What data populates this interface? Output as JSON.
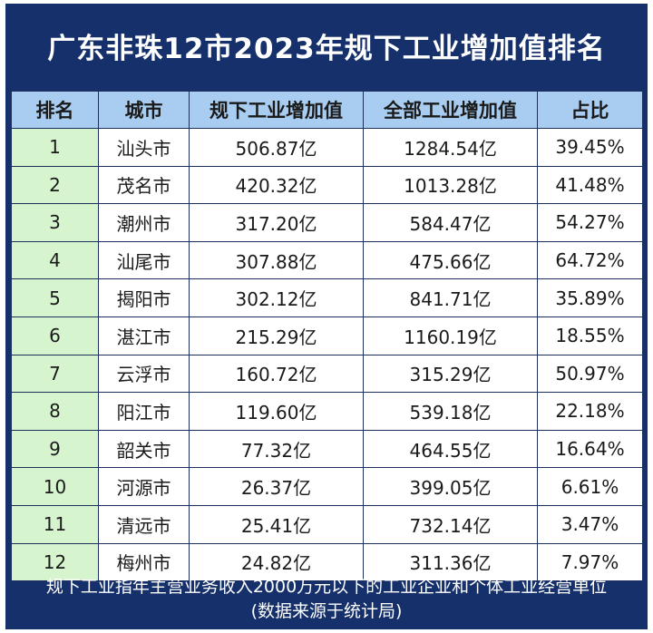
{
  "title": "广东非珠12市2023年规下工业增加值排名",
  "headers": [
    "排名",
    "城市",
    "规下工业增加值",
    "全部工业增加值",
    "占比"
  ],
  "rows": [
    {
      "rank": "1",
      "city": "汕头市",
      "small": "506.87亿",
      "total": "1284.54亿",
      "ratio": "39.45%"
    },
    {
      "rank": "2",
      "city": "茂名市",
      "small": "420.32亿",
      "total": "1013.28亿",
      "ratio": "41.48%"
    },
    {
      "rank": "3",
      "city": "潮州市",
      "small": "317.20亿",
      "total": "584.47亿",
      "ratio": "54.27%"
    },
    {
      "rank": "4",
      "city": "汕尾市",
      "small": "307.88亿",
      "total": "475.66亿",
      "ratio": "64.72%"
    },
    {
      "rank": "5",
      "city": "揭阳市",
      "small": "302.12亿",
      "total": "841.71亿",
      "ratio": "35.89%"
    },
    {
      "rank": "6",
      "city": "湛江市",
      "small": "215.29亿",
      "total": "1160.19亿",
      "ratio": "18.55%"
    },
    {
      "rank": "7",
      "city": "云浮市",
      "small": "160.72亿",
      "total": "315.29亿",
      "ratio": "50.97%"
    },
    {
      "rank": "8",
      "city": "阳江市",
      "small": "119.60亿",
      "total": "539.18亿",
      "ratio": "22.18%"
    },
    {
      "rank": "9",
      "city": "韶关市",
      "small": "77.32亿",
      "total": "464.55亿",
      "ratio": "16.64%"
    },
    {
      "rank": "10",
      "city": "河源市",
      "small": "26.37亿",
      "total": "399.05亿",
      "ratio": "6.61%"
    },
    {
      "rank": "11",
      "city": "清远市",
      "small": "25.41亿",
      "total": "732.14亿",
      "ratio": "3.47%"
    },
    {
      "rank": "12",
      "city": "梅州市",
      "small": "24.82亿",
      "total": "311.36亿",
      "ratio": "7.97%"
    }
  ],
  "footer": {
    "note": "规下工业指年主营业务收入2000万元以下的工业企业和个体工业经营单位",
    "source": "(数据来源于统计局)"
  },
  "colors": {
    "frame": "#15306a",
    "header_bg": "#a9cdf1",
    "rank_bg": "#d6f5cf"
  }
}
